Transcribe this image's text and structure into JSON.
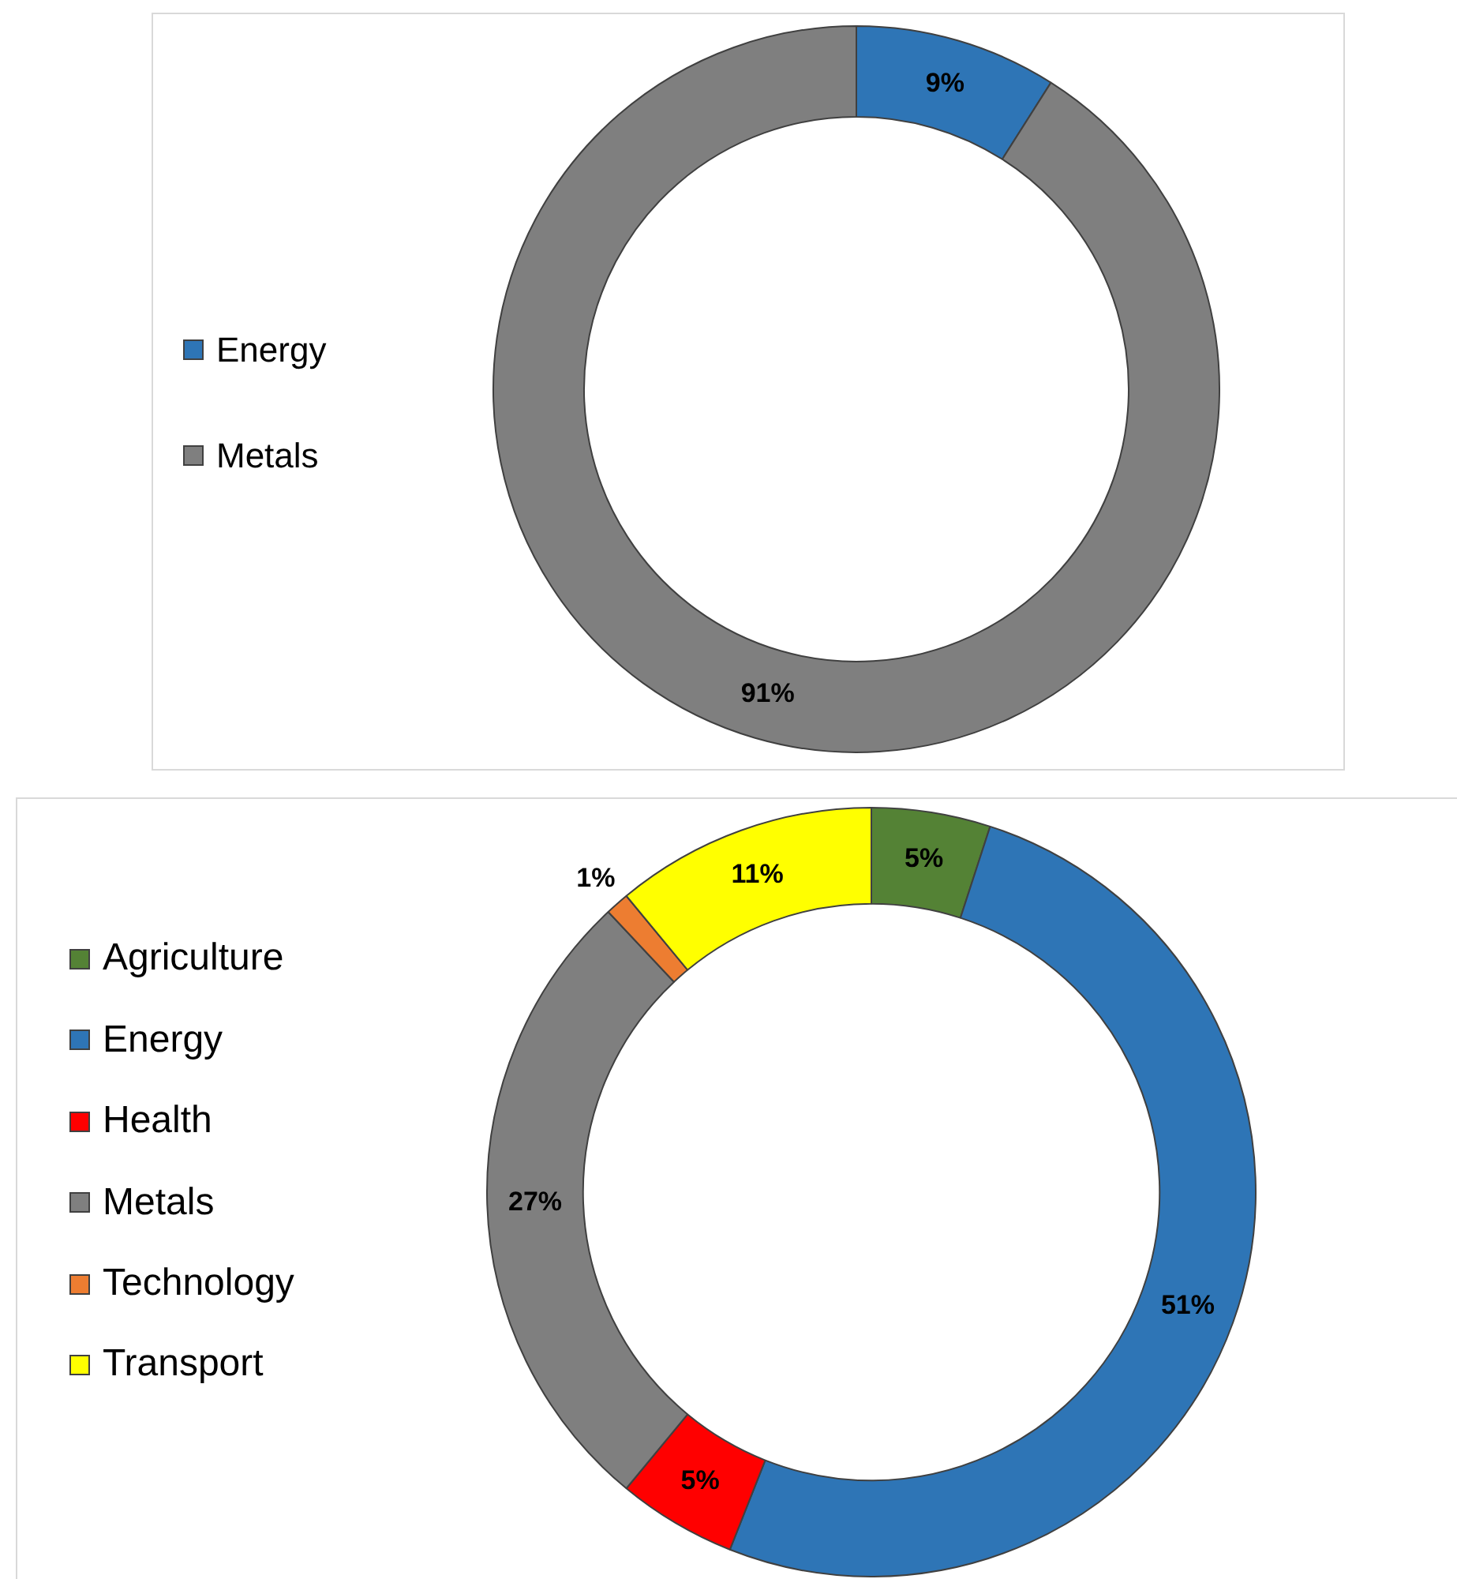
{
  "chart_data": [
    {
      "type": "donut",
      "categories": [
        "Energy",
        "Metals"
      ],
      "values": [
        9,
        91
      ],
      "colors": [
        "#2e75b6",
        "#7f7f7f"
      ],
      "value_labels": [
        "9%",
        "91%"
      ],
      "legend": "left"
    },
    {
      "type": "donut",
      "categories": [
        "Agriculture",
        "Energy",
        "Health",
        "Metals",
        "Technology",
        "Transport"
      ],
      "values": [
        5,
        51,
        5,
        27,
        1,
        11
      ],
      "colors": [
        "#548235",
        "#2e75b6",
        "#ff0000",
        "#7f7f7f",
        "#ed7d31",
        "#ffff00"
      ],
      "value_labels": [
        "5%",
        "51%",
        "5%",
        "27%",
        "1%",
        "11%"
      ],
      "legend": "left"
    }
  ]
}
